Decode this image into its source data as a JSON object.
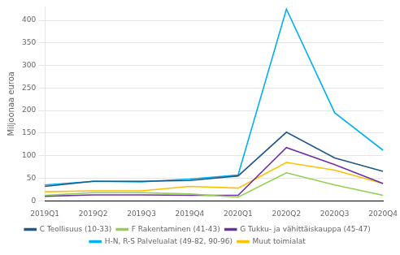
{
  "chart_data": {
    "type": "line",
    "ylabel": "Miljoonaa euroa",
    "categories": [
      "2019Q1",
      "2019Q2",
      "2019Q3",
      "2019Q4",
      "2020Q1",
      "2020Q2",
      "2020Q3",
      "2020Q4"
    ],
    "series": [
      {
        "name": "C Teollisuus (10-33)",
        "color": "#215887",
        "values": [
          32,
          43,
          43,
          45,
          55,
          152,
          95,
          65
        ]
      },
      {
        "name": "F Rakentaminen (41-43)",
        "color": "#92d050",
        "values": [
          12,
          18,
          18,
          15,
          8,
          62,
          35,
          12
        ]
      },
      {
        "name": "G Tukku- ja vähittäiskauppa (45-47)",
        "color": "#7030a0",
        "values": [
          10,
          13,
          13,
          12,
          12,
          118,
          80,
          38
        ]
      },
      {
        "name": "H-N, R-S Palvelualat (49-82, 90-96)",
        "color": "#00b0f0",
        "values": [
          35,
          43,
          42,
          48,
          57,
          425,
          195,
          112
        ]
      },
      {
        "name": "Muut toimialat",
        "color": "#ffc000",
        "values": [
          20,
          22,
          22,
          32,
          28,
          85,
          68,
          38
        ]
      }
    ],
    "ylim": [
      0,
      430
    ],
    "yticks": [
      0,
      50,
      100,
      150,
      200,
      250,
      300,
      350,
      400
    ],
    "grid": true,
    "legend": "bottom"
  }
}
